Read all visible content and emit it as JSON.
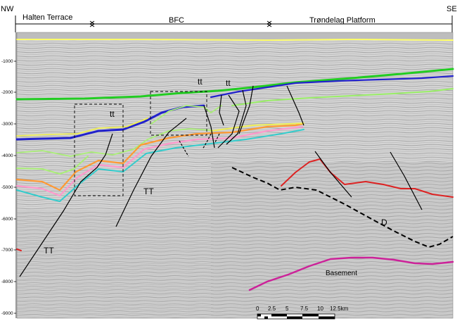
{
  "corners": {
    "left": "NW",
    "right": "SE"
  },
  "domains": [
    {
      "id": "halten",
      "label": "Halten Terrace"
    },
    {
      "id": "bfc",
      "label": "BFC"
    },
    {
      "id": "trondelag",
      "label": "Trøndelag Platform"
    }
  ],
  "depth_axis": {
    "ticks": [
      "-1000",
      "-2000",
      "-3000",
      "-4000",
      "-5000",
      "-6000",
      "-7000",
      "-8000",
      "-9000"
    ]
  },
  "annotations": {
    "tt_1": "tt",
    "tt_2": "tt",
    "tt_3": "tt",
    "TT_1": "TT",
    "TT_2": "TT",
    "D": "D",
    "basement": "Basement"
  },
  "scale_bar": {
    "ticks": [
      "0",
      "2.5",
      "5",
      "7.5",
      "10",
      "12.5km"
    ]
  },
  "colors": {
    "horizon_yellow": "#ffff66",
    "horizon_green": "#22cc22",
    "horizon_blue": "#2222cc",
    "horizon_lightgreen": "#99ee66",
    "horizon_orange": "#ff9933",
    "horizon_pink": "#ff99cc",
    "horizon_cyan": "#33cccc",
    "horizon_red": "#dd2222",
    "basement": "#cc2299",
    "fault": "#000000"
  }
}
